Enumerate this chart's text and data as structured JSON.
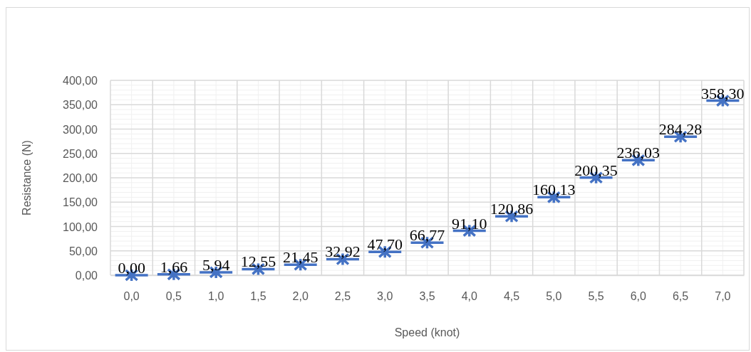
{
  "chart_data": {
    "type": "scatter",
    "xlabel": "Speed (knot)",
    "ylabel": "Resistance (N)",
    "categories": [
      "0,0",
      "0,5",
      "1,0",
      "1,5",
      "2,0",
      "2,5",
      "3,0",
      "3,5",
      "4,0",
      "4,5",
      "5,0",
      "5,5",
      "6,0",
      "6,5",
      "7,0"
    ],
    "series": [
      {
        "color": "#4472c4",
        "marker": "cross",
        "values": [
          0,
          1.66,
          5.94,
          12.55,
          21.45,
          32.92,
          47.7,
          66.77,
          91.1,
          120.86,
          160.13,
          200.35,
          236.03,
          284.28,
          358.3
        ],
        "value_labels": [
          "0,00",
          "1,66",
          "5,94",
          "12,55",
          "21,45",
          "32,92",
          "47,70",
          "66,77",
          "91,10",
          "120,86",
          "160,13",
          "200,35",
          "236,03",
          "284,28",
          "358,30"
        ]
      }
    ],
    "ylim": [
      0,
      400
    ],
    "yticks": [
      {
        "value": 0,
        "label": "0,00"
      },
      {
        "value": 50,
        "label": "50,00"
      },
      {
        "value": 100,
        "label": "100,00"
      },
      {
        "value": 150,
        "label": "150,00"
      },
      {
        "value": 200,
        "label": "200,00"
      },
      {
        "value": 250,
        "label": "250,00"
      },
      {
        "value": 300,
        "label": "300,00"
      },
      {
        "value": 350,
        "label": "350,00"
      },
      {
        "value": 400,
        "label": "400,00"
      }
    ],
    "grid": true
  }
}
